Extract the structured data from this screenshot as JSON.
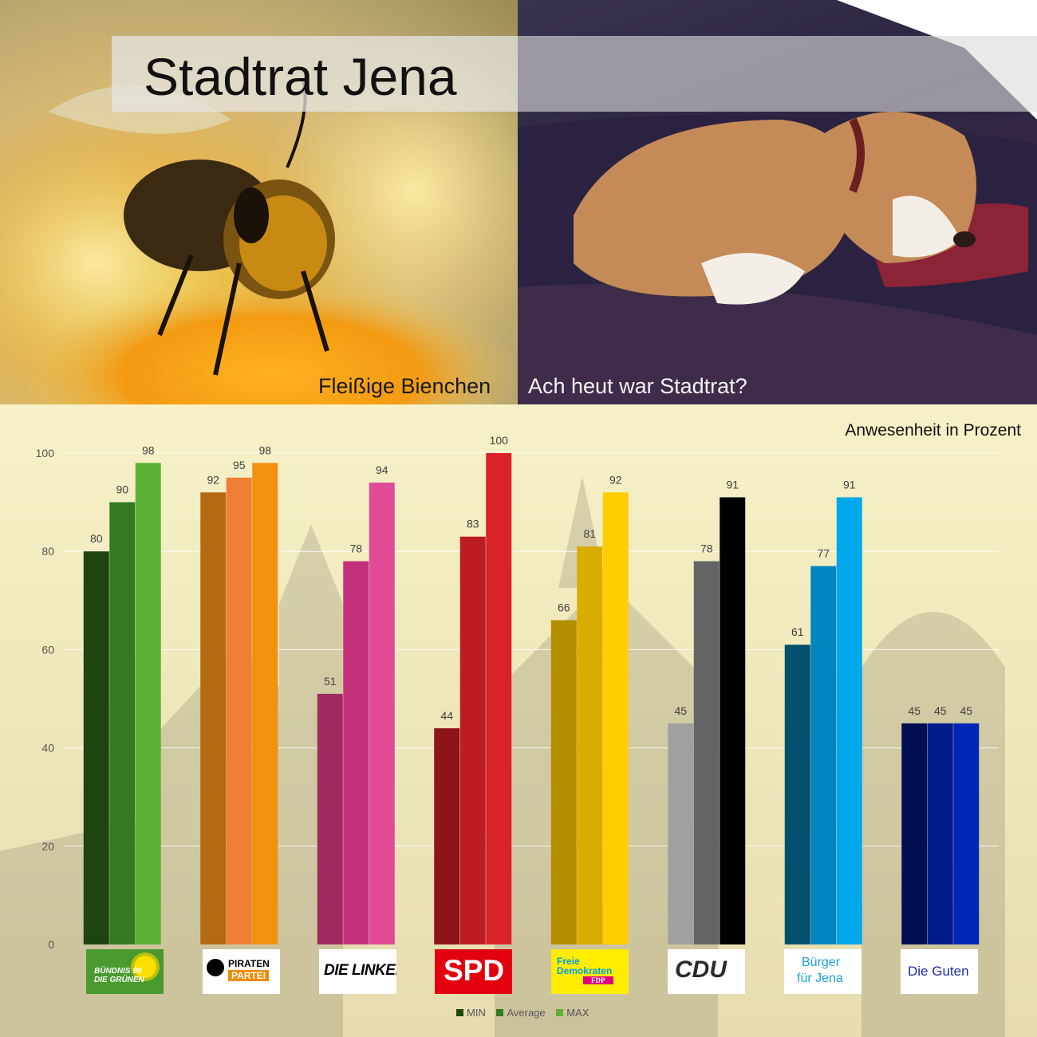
{
  "header": {
    "title": "Stadtrat Jena",
    "caption_left": "Fleißige Bienchen",
    "caption_right": "Ach heut war Stadtrat?"
  },
  "chart_data": {
    "type": "bar",
    "title": "Anwesenheit in Prozent",
    "xlabel": "",
    "ylabel": "",
    "ylim": [
      0,
      100
    ],
    "yticks": [
      0,
      20,
      40,
      60,
      80,
      100
    ],
    "grid": true,
    "legend_position": "bottom-center",
    "categories": [
      "BÜNDNIS 90 DIE GRÜNEN",
      "PIRATEN PARTEI",
      "DIE LINKE.",
      "SPD",
      "Freie Demokraten FDP",
      "CDU",
      "Bürger für Jena",
      "Die Guten"
    ],
    "series": [
      {
        "name": "MIN",
        "values": [
          80,
          92,
          51,
          44,
          66,
          45,
          61,
          45
        ]
      },
      {
        "name": "Average",
        "values": [
          90,
          95,
          78,
          83,
          81,
          78,
          77,
          45
        ]
      },
      {
        "name": "MAX",
        "values": [
          98,
          98,
          94,
          100,
          92,
          91,
          91,
          45
        ]
      }
    ],
    "colors": [
      [
        "#1e4510",
        "#347a21",
        "#5bb234"
      ],
      [
        "#b36a10",
        "#ef7f35",
        "#f29010"
      ],
      [
        "#a02a60",
        "#c4317b",
        "#e04a96"
      ],
      [
        "#8e1417",
        "#bd1d22",
        "#d82327"
      ],
      [
        "#b38f00",
        "#d9ad00",
        "#ffcd00"
      ],
      [
        "#a0a0a0",
        "#646464",
        "#000000"
      ],
      [
        "#00506e",
        "#0085bf",
        "#00a7ea"
      ],
      [
        "#000f4f",
        "#001c8a",
        "#0026b5"
      ]
    ],
    "legend_colors": [
      "#1e4510",
      "#347a21",
      "#5bb234"
    ]
  },
  "logos": [
    {
      "line1": "BÜNDNIS 90",
      "line2": "DIE GRÜNEN",
      "bg": "#4a9a2f",
      "fg": "#ffffff",
      "sun": "#ffde00"
    },
    {
      "line1": "PIRATEN",
      "line2": "PARTEI",
      "bg": "#ffffff",
      "fg": "#000000",
      "accent": "#f18a00"
    },
    {
      "text": "DIE LINKE.",
      "bg": "#ffffff",
      "fg": "#000000"
    },
    {
      "text": "SPD",
      "bg": "#e3000f",
      "fg": "#ffffff"
    },
    {
      "line1": "Freie",
      "line2": "Demokraten",
      "line3": "FDP",
      "bg": "#ffed00",
      "fg": "#009ee0",
      "accent": "#e5007d"
    },
    {
      "text": "CDU",
      "bg": "#ffffff",
      "fg": "#2a2a2a"
    },
    {
      "line1": "Bürger",
      "line2": "für Jena",
      "bg": "#ffffff",
      "fg": "#1aa0e0"
    },
    {
      "text": "Die Guten",
      "bg": "#ffffff",
      "fg": "#1a2aa8"
    }
  ]
}
